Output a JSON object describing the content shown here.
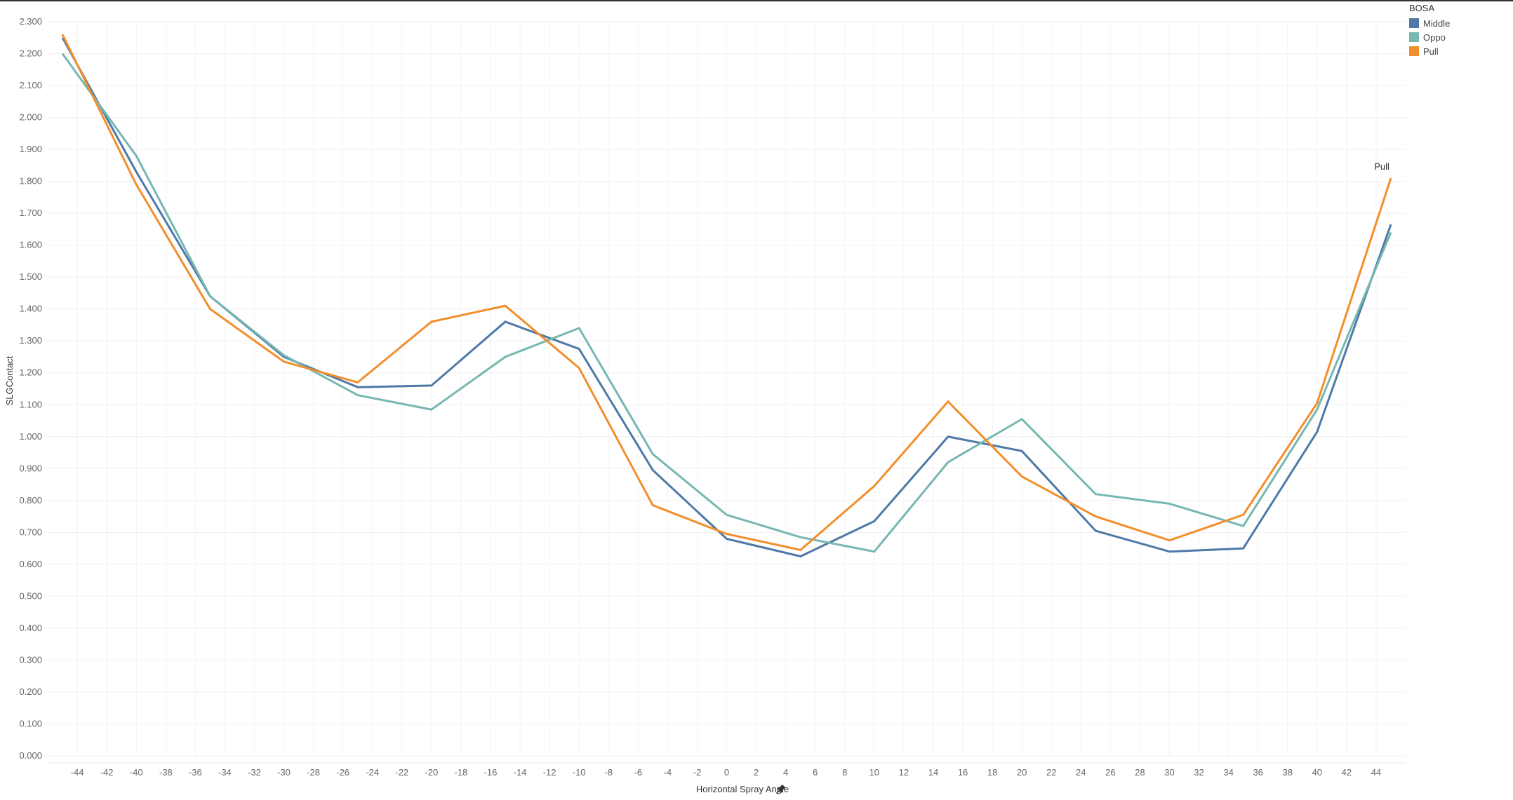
{
  "chart_data": {
    "type": "line",
    "xlabel": "Horizontal Spray Angle",
    "ylabel": "SLGContact",
    "xlim": [
      -46,
      46
    ],
    "ylim": [
      0,
      2.3
    ],
    "x_ticks": [
      "-44",
      "-42",
      "-40",
      "-38",
      "-36",
      "-34",
      "-32",
      "-30",
      "-28",
      "-26",
      "-24",
      "-22",
      "-20",
      "-18",
      "-16",
      "-14",
      "-12",
      "-10",
      "-8",
      "-6",
      "-4",
      "-2",
      "0",
      "2",
      "4",
      "6",
      "8",
      "10",
      "12",
      "14",
      "16",
      "18",
      "20",
      "22",
      "24",
      "26",
      "28",
      "30",
      "32",
      "34",
      "36",
      "38",
      "40",
      "42",
      "44"
    ],
    "y_ticks": [
      "0.000",
      "0.100",
      "0.200",
      "0.300",
      "0.400",
      "0.500",
      "0.600",
      "0.700",
      "0.800",
      "0.900",
      "1.000",
      "1.100",
      "1.200",
      "1.300",
      "1.400",
      "1.500",
      "1.600",
      "1.700",
      "1.800",
      "1.900",
      "2.000",
      "2.100",
      "2.200",
      "2.300"
    ],
    "grid": true,
    "legend": {
      "title": "BOSA",
      "position": "top-right",
      "entries": [
        {
          "name": "Middle",
          "color": "#4e79a7"
        },
        {
          "name": "Oppo",
          "color": "#76b7b2"
        },
        {
          "name": "Pull",
          "color": "#f28e2b"
        }
      ]
    },
    "x": [
      -45,
      -40,
      -35,
      -30,
      -25,
      -20,
      -15,
      -10,
      -5,
      0,
      5,
      10,
      15,
      20,
      25,
      30,
      35,
      40,
      45
    ],
    "series": [
      {
        "name": "Middle",
        "color": "#4e79a7",
        "values": [
          2.25,
          1.83,
          1.44,
          1.25,
          1.155,
          1.16,
          1.36,
          1.275,
          0.895,
          0.68,
          0.625,
          0.735,
          1.0,
          0.955,
          0.705,
          0.64,
          0.65,
          1.015,
          1.665
        ]
      },
      {
        "name": "Oppo",
        "color": "#76b7b2",
        "values": [
          2.2,
          1.88,
          1.44,
          1.255,
          1.13,
          1.085,
          1.25,
          1.34,
          0.945,
          0.755,
          0.685,
          0.64,
          0.92,
          1.055,
          0.82,
          0.79,
          0.72,
          1.085,
          1.64
        ]
      },
      {
        "name": "Pull",
        "color": "#f28e2b",
        "values": [
          2.26,
          1.79,
          1.4,
          1.235,
          1.17,
          1.36,
          1.41,
          1.215,
          0.785,
          0.695,
          0.645,
          0.845,
          1.11,
          0.875,
          0.75,
          0.675,
          0.755,
          1.105,
          1.81
        ]
      }
    ],
    "annotations": [
      {
        "text": "Pull",
        "series": "Pull"
      }
    ]
  }
}
